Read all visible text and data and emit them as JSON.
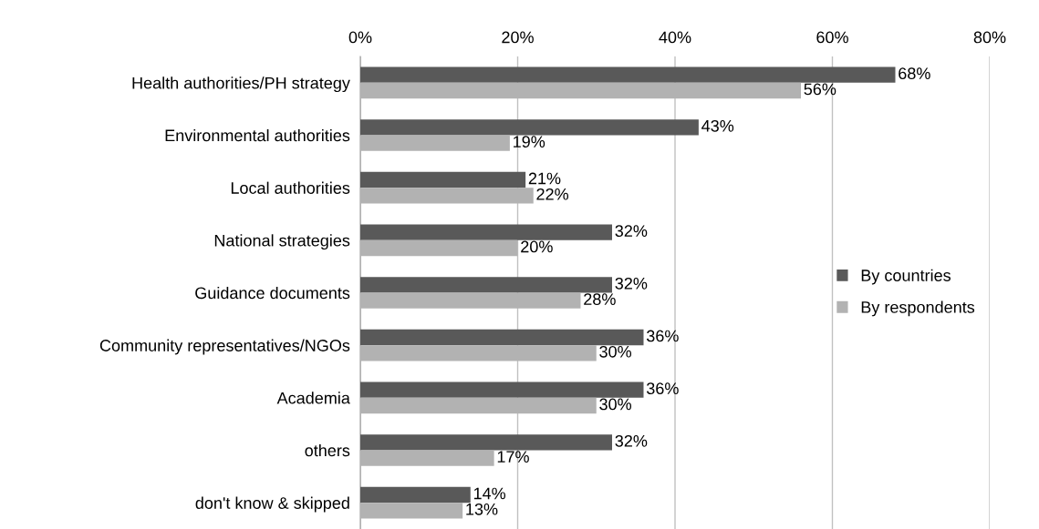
{
  "chart_data": {
    "type": "bar",
    "orientation": "horizontal",
    "categories": [
      "Health authorities/PH strategy",
      "Environmental authorities",
      "Local authorities",
      "National strategies",
      "Guidance documents",
      "Community representatives/NGOs",
      "Academia",
      "others",
      "don't know & skipped"
    ],
    "series": [
      {
        "name": "By countries",
        "color": "#595959",
        "values": [
          68,
          43,
          21,
          32,
          32,
          36,
          36,
          32,
          14
        ],
        "value_labels": [
          "68%",
          "43%",
          "21%",
          "32%",
          "32%",
          "36%",
          "36%",
          "32%",
          "14%"
        ]
      },
      {
        "name": "By respondents",
        "color": "#b2b2b2",
        "values": [
          56,
          19,
          22,
          20,
          28,
          30,
          30,
          17,
          13
        ],
        "value_labels": [
          "56%",
          "19%",
          "22%",
          "20%",
          "28%",
          "30%",
          "30%",
          "17%",
          "13%"
        ]
      }
    ],
    "xlim": [
      0,
      80
    ],
    "xticks": [
      {
        "value": 0,
        "label": "0%"
      },
      {
        "value": 20,
        "label": "20%"
      },
      {
        "value": 40,
        "label": "40%"
      },
      {
        "value": 60,
        "label": "60%"
      },
      {
        "value": 80,
        "label": "80%"
      }
    ],
    "grid": "x",
    "legend": "right"
  }
}
